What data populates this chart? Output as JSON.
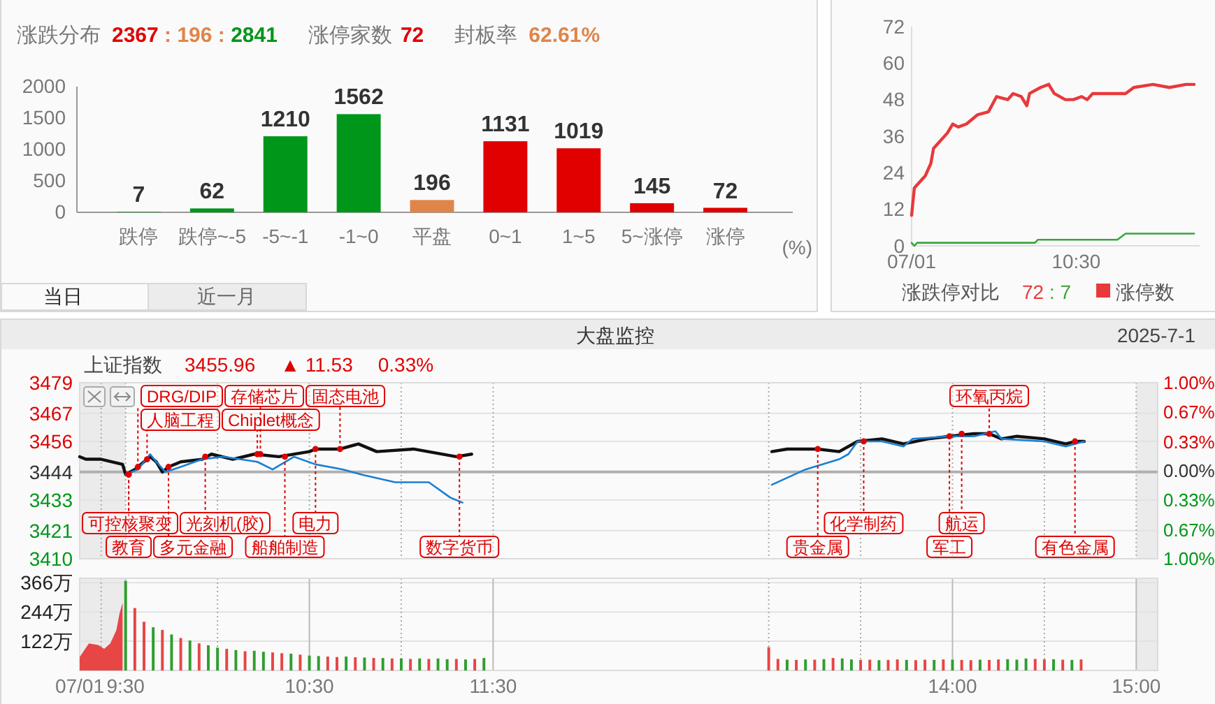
{
  "chart_data": [
    {
      "type": "bar",
      "title": "涨跌分布",
      "xlabel": "(%)",
      "categories": [
        "跌停",
        "跌停~-5",
        "-5~-1",
        "-1~0",
        "平盘",
        "0~1",
        "1~5",
        "5~涨停",
        "涨停"
      ],
      "values": [
        7,
        62,
        1210,
        1562,
        196,
        1131,
        1019,
        145,
        72
      ],
      "colors": [
        "#00961a",
        "#00961a",
        "#00961a",
        "#00961a",
        "#e0854a",
        "#e00000",
        "#e00000",
        "#e00000",
        "#e00000"
      ],
      "ylim": [
        0,
        2000
      ],
      "yticks": [
        0,
        500,
        1000,
        1500,
        2000
      ],
      "data_labels": true,
      "annotations": [
        "2367 : 196 : 2841",
        "涨停家数 72",
        "封板率 62.61%",
        "当日",
        "近一月"
      ]
    },
    {
      "type": "line",
      "title": "涨跌停对比",
      "annotations": [
        "72 : 7"
      ],
      "legend": "bottom",
      "xlim": [
        "2025-07-01T09:30",
        "2025-07-01T11:15"
      ],
      "xticks": [
        {
          "value": "2025-07-01T09:30",
          "label": "07/01"
        },
        {
          "value": "2025-07-01T10:30",
          "label": "10:30"
        }
      ],
      "ylim": [
        0,
        72
      ],
      "yticks": [
        0,
        12,
        24,
        36,
        48,
        60,
        72
      ],
      "series": [
        {
          "name": "涨停数",
          "color": "#e8393b",
          "x": [
            "2025-07-01T09:30",
            "2025-07-01T09:31",
            "2025-07-01T09:32",
            "2025-07-01T09:35",
            "2025-07-01T09:37",
            "2025-07-01T09:38",
            "2025-07-01T09:40",
            "2025-07-01T09:43",
            "2025-07-01T09:45",
            "2025-07-01T09:47",
            "2025-07-01T09:50",
            "2025-07-01T09:54",
            "2025-07-01T09:58",
            "2025-07-01T10:01",
            "2025-07-01T10:05",
            "2025-07-01T10:07",
            "2025-07-01T10:10",
            "2025-07-01T10:12",
            "2025-07-01T10:13",
            "2025-07-01T10:17",
            "2025-07-01T10:20",
            "2025-07-01T10:22",
            "2025-07-01T10:26",
            "2025-07-01T10:29",
            "2025-07-01T10:32",
            "2025-07-01T10:34",
            "2025-07-01T10:36",
            "2025-07-01T10:38",
            "2025-07-01T10:48",
            "2025-07-01T10:51",
            "2025-07-01T10:58",
            "2025-07-01T11:04",
            "2025-07-01T11:10",
            "2025-07-01T11:13"
          ],
          "values": [
            10,
            19,
            20,
            23,
            27,
            32,
            34,
            37,
            40,
            39,
            40,
            43,
            44,
            49,
            48,
            50,
            49,
            46,
            50,
            52,
            53,
            50,
            48,
            48,
            49,
            48,
            50,
            50,
            50,
            52,
            53,
            52,
            53,
            53
          ]
        },
        {
          "color": "#3aa53a",
          "x": [
            "2025-07-01T09:30",
            "2025-07-01T09:31",
            "2025-07-01T09:32",
            "2025-07-01T10:15",
            "2025-07-01T10:16",
            "2025-07-01T10:45",
            "2025-07-01T10:48",
            "2025-07-01T11:13"
          ],
          "values": [
            1,
            0,
            1,
            1,
            2,
            2,
            4,
            4
          ]
        }
      ]
    },
    {
      "type": "line",
      "title": "上证指数",
      "annotations": [
        "3455.96",
        "▲ 11.53",
        "0.33%",
        "大盘监控",
        "2025-7-1",
        {
          "text": "教育",
          "x": "2025-07-01T09:31",
          "y": 3443
        },
        {
          "text": "可控核聚变",
          "x": "2025-07-01T09:31",
          "y": 3443
        },
        {
          "text": "DRG/DIP",
          "x": "2025-07-01T09:34",
          "y": 3446
        },
        {
          "text": "人脑工程",
          "x": "2025-07-01T09:37",
          "y": 3449
        },
        {
          "text": "多元金融",
          "x": "2025-07-01T09:44",
          "y": 3446
        },
        {
          "text": "光刻机(胶)",
          "x": "2025-07-01T09:56",
          "y": 3450
        },
        {
          "text": "Chiplet概念",
          "x": "2025-07-01T10:13",
          "y": 3451
        },
        {
          "text": "存储芯片",
          "x": "2025-07-01T10:14",
          "y": 3451
        },
        {
          "text": "船舶制造",
          "x": "2025-07-01T10:22",
          "y": 3450
        },
        {
          "text": "电力",
          "x": "2025-07-01T10:32",
          "y": 3453
        },
        {
          "text": "固态电池",
          "x": "2025-07-01T10:40",
          "y": 3453
        },
        {
          "text": "数字货币",
          "x": "2025-07-01T11:19",
          "y": 3450
        },
        {
          "text": "贵金属",
          "x": "2025-07-01T13:16",
          "y": 3453
        },
        {
          "text": "化学制药",
          "x": "2025-07-01T13:31",
          "y": 3456
        },
        {
          "text": "军工",
          "x": "2025-07-01T13:59",
          "y": 3458
        },
        {
          "text": "航运",
          "x": "2025-07-01T14:03",
          "y": 3459
        },
        {
          "text": "环氧丙烷",
          "x": "2025-07-01T14:12",
          "y": 3459
        },
        {
          "text": "有色金属",
          "x": "2025-07-01T14:40",
          "y": 3456
        }
      ],
      "xlim": [
        "2025-07-01T09:15",
        "2025-07-01T15:07"
      ],
      "xticks": [
        {
          "value": "2025-07-01T09:15",
          "label": null
        },
        {
          "value": "2025-07-01T09:22",
          "label": null
        },
        {
          "value": "2025-07-01T09:30",
          "label": null
        },
        {
          "value": "2025-07-01T10:00",
          "label": null
        },
        {
          "value": "2025-07-01T10:30",
          "label": null
        },
        {
          "value": "2025-07-01T11:00",
          "label": null
        },
        {
          "value": "2025-07-01T11:30",
          "label": null
        },
        {
          "value": "2025-07-01T13:00",
          "label": null
        },
        {
          "value": "2025-07-01T13:30",
          "label": null
        },
        {
          "value": "2025-07-01T14:00",
          "label": null
        },
        {
          "value": "2025-07-01T14:30",
          "label": null
        },
        {
          "value": "2025-07-01T15:00",
          "label": null
        }
      ],
      "ylim": [
        3410,
        3479
      ],
      "yticks": [
        3410,
        3421,
        3433,
        3444,
        3456,
        3467,
        3479
      ],
      "y2lim": [
        -1,
        1
      ],
      "y2ticks": [
        {
          "value": 1,
          "label": "1.00%"
        },
        {
          "value": 0.67,
          "label": "0.67%"
        },
        {
          "value": 0.33,
          "label": "0.33%"
        },
        {
          "value": 0,
          "label": "0.00%"
        },
        {
          "value": -0.33,
          "label": "0.33%"
        },
        {
          "value": -0.67,
          "label": "0.67%"
        },
        {
          "value": -1,
          "label": "1.00%"
        }
      ],
      "grid": true,
      "tick_labels": "y",
      "ref_lines": [
        {
          "axis": "y",
          "value": 3444,
          "color": "#b0b0b0"
        }
      ],
      "bands": [
        {
          "axis": "x",
          "from": "2025-07-01T09:15",
          "to": "2025-07-01T09:30",
          "color": "#ebebeb"
        },
        {
          "axis": "x",
          "from": "2025-07-01T15:00",
          "to": "2025-07-01T15:07",
          "color": "#ebebeb"
        }
      ],
      "series": [
        {
          "color": "#111111",
          "x": [
            "2025-07-01T09:15",
            "2025-07-01T09:17",
            "2025-07-01T09:22",
            "2025-07-01T09:29",
            "2025-07-01T09:30",
            "2025-07-01T09:33",
            "2025-07-01T09:38",
            "2025-07-01T09:40",
            "2025-07-01T09:42",
            "2025-07-01T09:44",
            "2025-07-01T09:48",
            "2025-07-01T09:55",
            "2025-07-01T09:58",
            "2025-07-01T10:05",
            "2025-07-01T10:12",
            "2025-07-01T10:20",
            "2025-07-01T10:30",
            "2025-07-01T10:32",
            "2025-07-01T10:40",
            "2025-07-01T10:46",
            "2025-07-01T10:52",
            "2025-07-01T11:04",
            "2025-07-01T11:18",
            "2025-07-01T11:23",
            "2025-07-01T11:30",
            "2025-07-01T13:01",
            "2025-07-01T13:06",
            "2025-07-01T13:16",
            "2025-07-01T13:23",
            "2025-07-01T13:29",
            "2025-07-01T13:37",
            "2025-07-01T13:44",
            "2025-07-01T13:52",
            "2025-07-01T13:59",
            "2025-07-01T14:07",
            "2025-07-01T14:12",
            "2025-07-01T14:16",
            "2025-07-01T14:21",
            "2025-07-01T14:30",
            "2025-07-01T14:37",
            "2025-07-01T14:40",
            "2025-07-01T14:43"
          ],
          "values": [
            3450,
            3449,
            3449,
            3447,
            3443,
            3445,
            3450,
            3448,
            3444,
            3446,
            3448,
            3449,
            3451,
            3449,
            3451,
            3450,
            3452,
            3453,
            3453,
            3455,
            3452,
            3453,
            3450,
            3451,
            null,
            3452,
            3453,
            3453,
            3452,
            3456,
            3457,
            3455,
            3457,
            3458,
            3459,
            3459,
            3457,
            3458,
            3457,
            3455,
            3456,
            3456
          ]
        },
        {
          "color": "#1a7fd4",
          "x": [
            "2025-07-01T09:30",
            "2025-07-01T09:34",
            "2025-07-01T09:38",
            "2025-07-01T09:40",
            "2025-07-01T09:43",
            "2025-07-01T09:48",
            "2025-07-01T09:55",
            "2025-07-01T10:02",
            "2025-07-01T10:13",
            "2025-07-01T10:18",
            "2025-07-01T10:25",
            "2025-07-01T10:32",
            "2025-07-01T10:41",
            "2025-07-01T10:47",
            "2025-07-01T10:58",
            "2025-07-01T11:09",
            "2025-07-01T11:16",
            "2025-07-01T11:20",
            "2025-07-01T11:30",
            "2025-07-01T13:01",
            "2025-07-01T13:12",
            "2025-07-01T13:23",
            "2025-07-01T13:26",
            "2025-07-01T13:29",
            "2025-07-01T13:37",
            "2025-07-01T13:44",
            "2025-07-01T13:47",
            "2025-07-01T13:59",
            "2025-07-01T14:07",
            "2025-07-01T14:14",
            "2025-07-01T14:16",
            "2025-07-01T14:30",
            "2025-07-01T14:37",
            "2025-07-01T14:43"
          ],
          "values": [
            3443,
            3445,
            3451,
            3448,
            3444,
            3446,
            3449,
            3450,
            3448,
            3445,
            3450,
            3447,
            3445,
            3443,
            3440,
            3440,
            3434,
            3432,
            null,
            3439,
            3445,
            3449,
            3451,
            3456,
            3456,
            3454,
            3457,
            3458,
            3458,
            3460,
            3457,
            3456,
            3454,
            3456
          ]
        }
      ]
    },
    {
      "type": "bar",
      "xlim": [
        "2025-07-01T09:15",
        "2025-07-01T15:07"
      ],
      "xticks": [
        {
          "value": "2025-07-01T09:15",
          "label": "07/01"
        },
        {
          "value": "2025-07-01T09:22",
          "label": null
        },
        {
          "value": "2025-07-01T09:30",
          "label": "9:30"
        },
        {
          "value": "2025-07-01T10:00",
          "label": null
        },
        {
          "value": "2025-07-01T10:30",
          "label": "10:30"
        },
        {
          "value": "2025-07-01T11:00",
          "label": null
        },
        {
          "value": "2025-07-01T11:30",
          "label": "11:30"
        },
        {
          "value": "2025-07-01T13:00",
          "label": null
        },
        {
          "value": "2025-07-01T13:30",
          "label": null
        },
        {
          "value": "2025-07-01T14:00",
          "label": "14:00"
        },
        {
          "value": "2025-07-01T14:30",
          "label": null
        },
        {
          "value": "2025-07-01T15:00",
          "label": "15:00"
        }
      ],
      "ylim": [
        0,
        384
      ],
      "yticks": [
        {
          "value": 122,
          "label": "122万"
        },
        {
          "value": 244,
          "label": "244万"
        },
        {
          "value": 366,
          "label": "366万"
        }
      ],
      "grid": true,
      "bands": [
        {
          "axis": "x",
          "from": "2025-07-01T09:15",
          "to": "2025-07-01T09:30",
          "color": "#ebebeb"
        },
        {
          "axis": "x",
          "from": "2025-07-01T15:00",
          "to": "2025-07-01T15:07",
          "color": "#ebebeb"
        }
      ],
      "series": [
        {
          "type": "area",
          "color": "#e84545",
          "x": [
            "2025-07-01T09:15",
            "2025-07-01T09:18",
            "2025-07-01T09:21",
            "2025-07-01T09:23",
            "2025-07-01T09:25",
            "2025-07-01T09:27",
            "2025-07-01T09:28",
            "2025-07-01T09:29"
          ],
          "values": [
            56,
            113,
            106,
            90,
            113,
            169,
            237,
            282
          ]
        },
        {
          "type": "bar",
          "x": [
            "2025-07-01T09:30",
            "2025-07-01T09:33",
            "2025-07-01T09:36",
            "2025-07-01T09:39",
            "2025-07-01T09:42",
            "2025-07-01T09:45",
            "2025-07-01T09:48",
            "2025-07-01T09:51",
            "2025-07-01T09:54",
            "2025-07-01T09:57",
            "2025-07-01T10:00",
            "2025-07-01T10:03",
            "2025-07-01T10:06",
            "2025-07-01T10:09",
            "2025-07-01T10:12",
            "2025-07-01T10:15",
            "2025-07-01T10:18",
            "2025-07-01T10:21",
            "2025-07-01T10:24",
            "2025-07-01T10:27",
            "2025-07-01T10:30",
            "2025-07-01T10:33",
            "2025-07-01T10:36",
            "2025-07-01T10:39",
            "2025-07-01T10:42",
            "2025-07-01T10:45",
            "2025-07-01T10:48",
            "2025-07-01T10:51",
            "2025-07-01T10:54",
            "2025-07-01T10:57",
            "2025-07-01T11:00",
            "2025-07-01T11:03",
            "2025-07-01T11:06",
            "2025-07-01T11:09",
            "2025-07-01T11:12",
            "2025-07-01T11:15",
            "2025-07-01T11:18",
            "2025-07-01T11:21",
            "2025-07-01T11:24",
            "2025-07-01T11:27",
            "2025-07-01T13:00",
            "2025-07-01T13:03",
            "2025-07-01T13:06",
            "2025-07-01T13:09",
            "2025-07-01T13:12",
            "2025-07-01T13:15",
            "2025-07-01T13:18",
            "2025-07-01T13:21",
            "2025-07-01T13:24",
            "2025-07-01T13:27",
            "2025-07-01T13:30",
            "2025-07-01T13:33",
            "2025-07-01T13:36",
            "2025-07-01T13:39",
            "2025-07-01T13:42",
            "2025-07-01T13:45",
            "2025-07-01T13:48",
            "2025-07-01T13:51",
            "2025-07-01T13:54",
            "2025-07-01T13:57",
            "2025-07-01T14:00",
            "2025-07-01T14:03",
            "2025-07-01T14:06",
            "2025-07-01T14:09",
            "2025-07-01T14:12",
            "2025-07-01T14:15",
            "2025-07-01T14:18",
            "2025-07-01T14:21",
            "2025-07-01T14:24",
            "2025-07-01T14:27",
            "2025-07-01T14:30",
            "2025-07-01T14:33",
            "2025-07-01T14:36",
            "2025-07-01T14:39",
            "2025-07-01T14:42"
          ],
          "values": [
            373,
            260,
            203,
            180,
            169,
            150,
            135,
            125,
            113,
            105,
            95,
            90,
            85,
            80,
            82,
            78,
            75,
            72,
            70,
            66,
            62,
            60,
            58,
            56,
            58,
            55,
            54,
            52,
            52,
            50,
            50,
            48,
            50,
            48,
            50,
            47,
            48,
            46,
            48,
            52,
            97,
            48,
            45,
            44,
            46,
            45,
            47,
            52,
            50,
            46,
            44,
            45,
            43,
            44,
            46,
            44,
            43,
            45,
            44,
            46,
            45,
            44,
            43,
            45,
            44,
            46,
            47,
            45,
            50,
            48,
            46,
            47,
            45,
            44,
            46
          ],
          "colors": [
            "#2f9e2f",
            "#e84545",
            "#e84545",
            "#2f9e2f",
            "#e84545",
            "#2f9e2f",
            "#e84545",
            "#2f9e2f",
            "#e84545",
            "#2f9e2f",
            "#2f9e2f",
            "#e84545",
            "#2f9e2f",
            "#e84545",
            "#2f9e2f",
            "#2f9e2f",
            "#e84545",
            "#e84545",
            "#2f9e2f",
            "#e84545",
            "#2f9e2f",
            "#2f9e2f",
            "#e84545",
            "#e84545",
            "#2f9e2f",
            "#e84545",
            "#2f9e2f",
            "#e84545",
            "#2f9e2f",
            "#e84545",
            "#2f9e2f",
            "#e84545",
            "#2f9e2f",
            "#e84545",
            "#2f9e2f",
            "#2f9e2f",
            "#e84545",
            "#2f9e2f",
            "#e84545",
            "#2f9e2f",
            "#e84545",
            "#e84545",
            "#2f9e2f",
            "#e84545",
            "#2f9e2f",
            "#e84545",
            "#2f9e2f",
            "#e84545",
            "#2f9e2f",
            "#2f9e2f",
            "#e84545",
            "#e84545",
            "#2f9e2f",
            "#e84545",
            "#e84545",
            "#2f9e2f",
            "#e84545",
            "#e84545",
            "#2f9e2f",
            "#e84545",
            "#2f9e2f",
            "#e84545",
            "#e84545",
            "#2f9e2f",
            "#e84545",
            "#e84545",
            "#2f9e2f",
            "#2f9e2f",
            "#2f9e2f",
            "#e84545",
            "#e84545",
            "#2f9e2f",
            "#e84545",
            "#2f9e2f",
            "#e84545"
          ]
        }
      ]
    }
  ]
}
